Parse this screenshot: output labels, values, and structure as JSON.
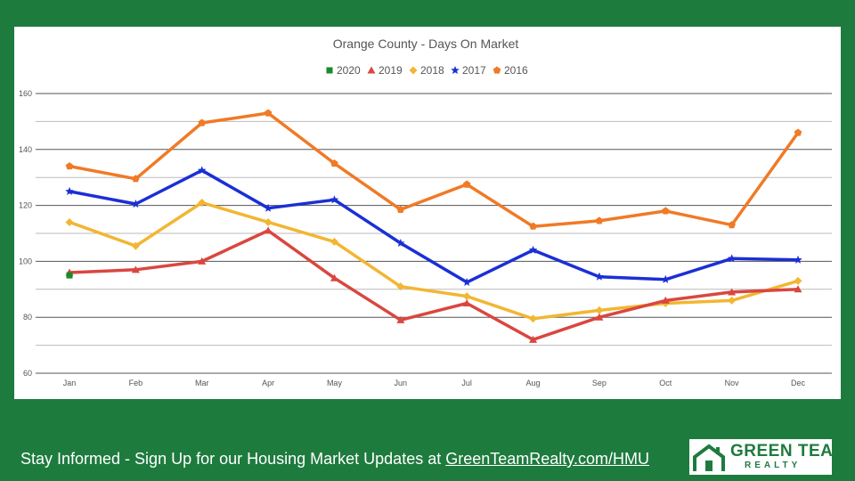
{
  "colors": {
    "background": "#1e7b3e",
    "grid": "#555555",
    "minor_grid": "#bbbbbb"
  },
  "chart_data": {
    "type": "line",
    "title": "Orange County - Days On Market",
    "xlabel": "",
    "ylabel": "",
    "categories": [
      "Jan",
      "Feb",
      "Mar",
      "Apr",
      "May",
      "Jun",
      "Jul",
      "Aug",
      "Sep",
      "Oct",
      "Nov",
      "Dec"
    ],
    "ylim": [
      60,
      160
    ],
    "yticks": [
      60,
      80,
      100,
      120,
      140,
      160
    ],
    "grid": true,
    "legend": "top",
    "series": [
      {
        "name": "2020",
        "color": "#1a8a2a",
        "marker": "square",
        "values": [
          95,
          null,
          null,
          null,
          null,
          null,
          null,
          null,
          null,
          null,
          null,
          null
        ]
      },
      {
        "name": "2019",
        "color": "#d9473f",
        "marker": "triangle",
        "values": [
          96,
          97,
          100,
          111,
          94,
          79,
          85,
          72,
          80,
          86,
          89,
          90
        ]
      },
      {
        "name": "2018",
        "color": "#f2b632",
        "marker": "diamond",
        "values": [
          114,
          105.5,
          121,
          114,
          107,
          91,
          87.5,
          79.5,
          82.5,
          85,
          86,
          93
        ]
      },
      {
        "name": "2017",
        "color": "#1b2fd6",
        "marker": "star",
        "values": [
          125,
          120.5,
          132.5,
          119,
          122,
          106.5,
          92.5,
          104,
          94.5,
          93.5,
          101,
          100.5
        ]
      },
      {
        "name": "2016",
        "color": "#f07a26",
        "marker": "pentagon",
        "values": [
          134,
          129.5,
          149.5,
          153,
          135,
          118.5,
          127.5,
          112.5,
          114.5,
          118,
          113,
          146
        ]
      }
    ]
  },
  "footer": {
    "text": "Stay Informed - Sign Up for our Housing Market Updates at ",
    "link": "GreenTeamRealty.com/HMU"
  },
  "logo": {
    "main": "GREEN TEAM",
    "sub": "REALTY"
  }
}
